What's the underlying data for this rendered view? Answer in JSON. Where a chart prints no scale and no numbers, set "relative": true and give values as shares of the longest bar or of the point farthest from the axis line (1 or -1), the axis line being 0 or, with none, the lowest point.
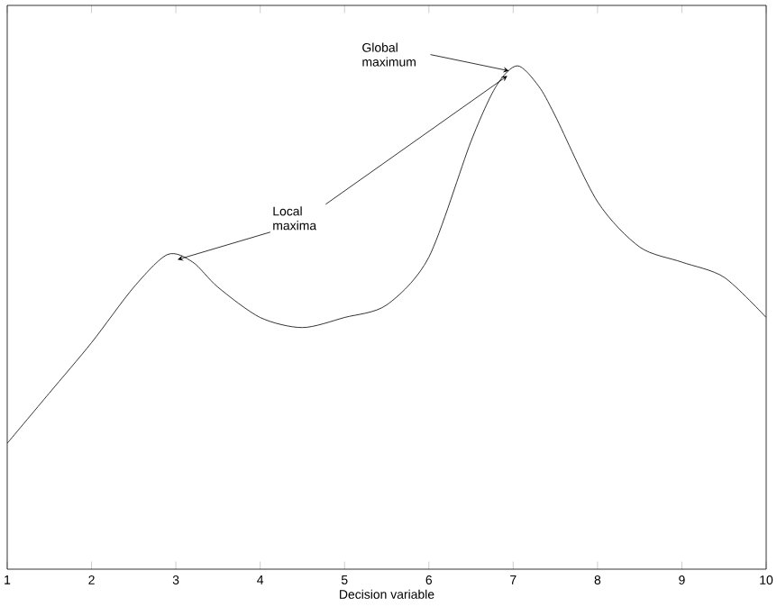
{
  "chart_data": {
    "type": "line",
    "xlabel": "Decision variable",
    "relative": true,
    "x": [
      1,
      1.5,
      2,
      2.5,
      2.9,
      3.2,
      3.5,
      4,
      4.5,
      5,
      5.5,
      6,
      6.5,
      6.8,
      7.05,
      7.3,
      7.5,
      8,
      8.5,
      9,
      9.5,
      10
    ],
    "series": [
      {
        "color": "#000000",
        "values": [
          0.25,
          0.35,
          0.45,
          0.56,
          0.625,
          0.61,
          0.56,
          0.5,
          0.48,
          0.5,
          0.525,
          0.62,
          0.85,
          0.96,
          1,
          0.96,
          0.9,
          0.73,
          0.64,
          0.61,
          0.58,
          0.5
        ]
      }
    ],
    "xlim": [
      1,
      10
    ],
    "xticks": [
      1,
      2,
      3,
      4,
      5,
      6,
      7,
      8,
      9,
      10
    ],
    "grid": false,
    "marker": "none",
    "line_style": "solid",
    "annotations": [
      {
        "text": "Local maxima",
        "x": 2.9,
        "y": 0.625
      },
      {
        "text": "Global maximum",
        "x": 7.05,
        "y": 1
      }
    ]
  }
}
